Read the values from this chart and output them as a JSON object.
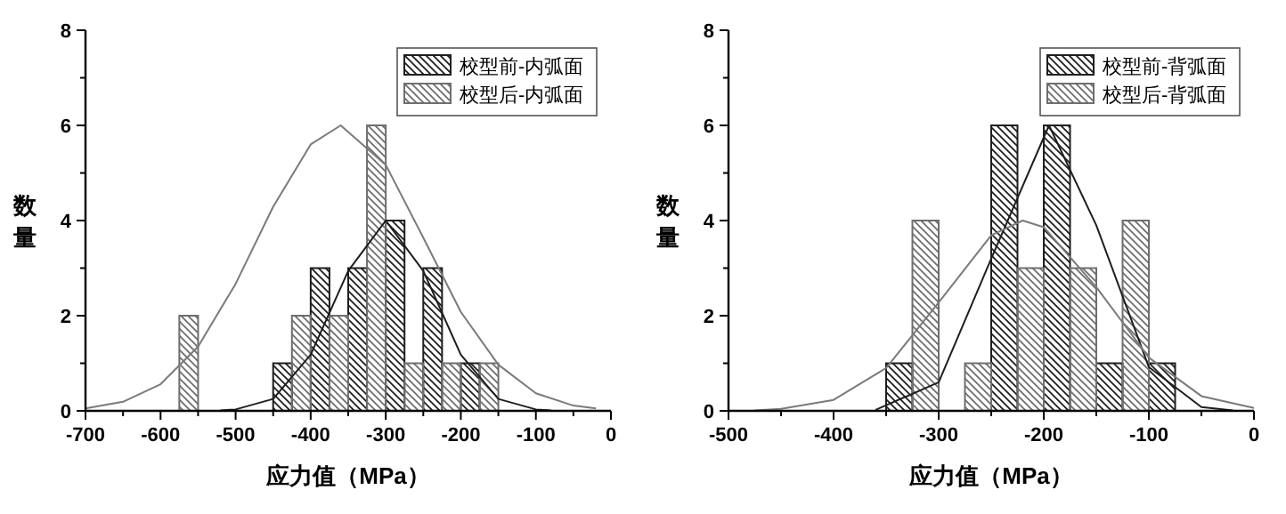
{
  "chart_data": [
    {
      "type": "histogram",
      "xlabel": "应力值（MPa）",
      "ylabel": "数量",
      "legend": "top right",
      "xlim": [
        -700,
        0
      ],
      "ylim": [
        0,
        8
      ],
      "xticks": [
        -700,
        {
          "value": -650,
          "label": null
        },
        -600,
        {
          "value": -550,
          "label": null
        },
        -500,
        {
          "value": -450,
          "label": null
        },
        -400,
        {
          "value": -350,
          "label": null
        },
        -300,
        {
          "value": -250,
          "label": null
        },
        -200,
        {
          "value": -150,
          "label": null
        },
        -100,
        {
          "value": -50,
          "label": null
        },
        0
      ],
      "yticks": [
        0,
        {
          "value": 1,
          "label": null
        },
        2,
        {
          "value": 3,
          "label": null
        },
        4,
        {
          "value": 5,
          "label": null
        },
        6,
        {
          "value": 7,
          "label": null
        },
        8
      ],
      "series": [
        {
          "name": "校型前-内弧面",
          "color": "#1e1e1e",
          "bins": [
            -450,
            -425,
            -400,
            -375,
            -350,
            -325,
            -300,
            -275,
            -250,
            -225,
            -200,
            -175
          ],
          "values": [
            1,
            0,
            3,
            0,
            3,
            0,
            4,
            0,
            3,
            0,
            1
          ]
        },
        {
          "name": "校型后-内弧面",
          "color": "#6e6e6e",
          "bins": [
            -575,
            -550,
            -525,
            -500,
            -475,
            -450,
            -425,
            -400,
            -375,
            -350,
            -325,
            -300,
            -275,
            -250,
            -225,
            -200,
            -175,
            -150
          ],
          "values": [
            2,
            0,
            0,
            0,
            0,
            0,
            2,
            0,
            2,
            0,
            6,
            0,
            1,
            0,
            1,
            0,
            1
          ]
        },
        {
          "type": "line",
          "color": "#1e1e1e",
          "x": [
            -520,
            -500,
            -450,
            -400,
            -350,
            -300,
            -250,
            -200,
            -150,
            -100,
            -80
          ],
          "values": [
            0.01,
            0.03,
            0.25,
            1.18,
            2.94,
            4,
            2.94,
            1.18,
            0.25,
            0.03,
            0.01
          ]
        },
        {
          "type": "line",
          "color": "#7a7a7a",
          "x": [
            -700,
            -650,
            -600,
            -550,
            -500,
            -450,
            -400,
            -360,
            -300,
            -250,
            -200,
            -150,
            -100,
            -50,
            -20
          ],
          "values": [
            0.05,
            0.19,
            0.56,
            1.35,
            2.67,
            4.29,
            5.6,
            6,
            5.17,
            3.64,
            2.08,
            0.97,
            0.37,
            0.11,
            0.05
          ]
        }
      ]
    },
    {
      "type": "histogram",
      "xlabel": "应力值（MPa）",
      "ylabel": "数量",
      "legend": "top right",
      "xlim": [
        -500,
        0
      ],
      "ylim": [
        0,
        8
      ],
      "xticks": [
        -500,
        {
          "value": -450,
          "label": null
        },
        -400,
        {
          "value": -350,
          "label": null
        },
        -300,
        {
          "value": -250,
          "label": null
        },
        -200,
        {
          "value": -150,
          "label": null
        },
        -100,
        {
          "value": -50,
          "label": null
        },
        0
      ],
      "yticks": [
        0,
        {
          "value": 1,
          "label": null
        },
        2,
        {
          "value": 3,
          "label": null
        },
        4,
        {
          "value": 5,
          "label": null
        },
        6,
        {
          "value": 7,
          "label": null
        },
        8
      ],
      "series": [
        {
          "name": "校型前-背弧面",
          "color": "#1e1e1e",
          "bins": [
            -350,
            -325,
            -300,
            -275,
            -250,
            -225,
            -200,
            -175,
            -150,
            -125,
            -100,
            -75
          ],
          "values": [
            1,
            0,
            0,
            0,
            6,
            0,
            6,
            0,
            1,
            0,
            1
          ]
        },
        {
          "name": "校型后-背弧面",
          "color": "#6e6e6e",
          "bins": [
            -325,
            -300,
            -275,
            -250,
            -225,
            -200,
            -175,
            -150,
            -125,
            -100
          ],
          "values": [
            4,
            0,
            1,
            0,
            3,
            0,
            3,
            0,
            4
          ]
        },
        {
          "type": "line",
          "color": "#1e1e1e",
          "x": [
            -360,
            -300,
            -250,
            -195,
            -150,
            -100,
            -50,
            -20
          ],
          "values": [
            0.02,
            0.6,
            3.2,
            6,
            3.9,
            0.92,
            0.08,
            0.01
          ]
        },
        {
          "type": "line",
          "color": "#7a7a7a",
          "x": [
            -475,
            -450,
            -400,
            -350,
            -300,
            -250,
            -220,
            -200,
            -150,
            -100,
            -50,
            0
          ],
          "values": [
            0.01,
            0.04,
            0.23,
            0.9,
            2.28,
            3.69,
            4,
            3.86,
            2.6,
            1.12,
            0.31,
            0.06
          ]
        }
      ]
    }
  ]
}
